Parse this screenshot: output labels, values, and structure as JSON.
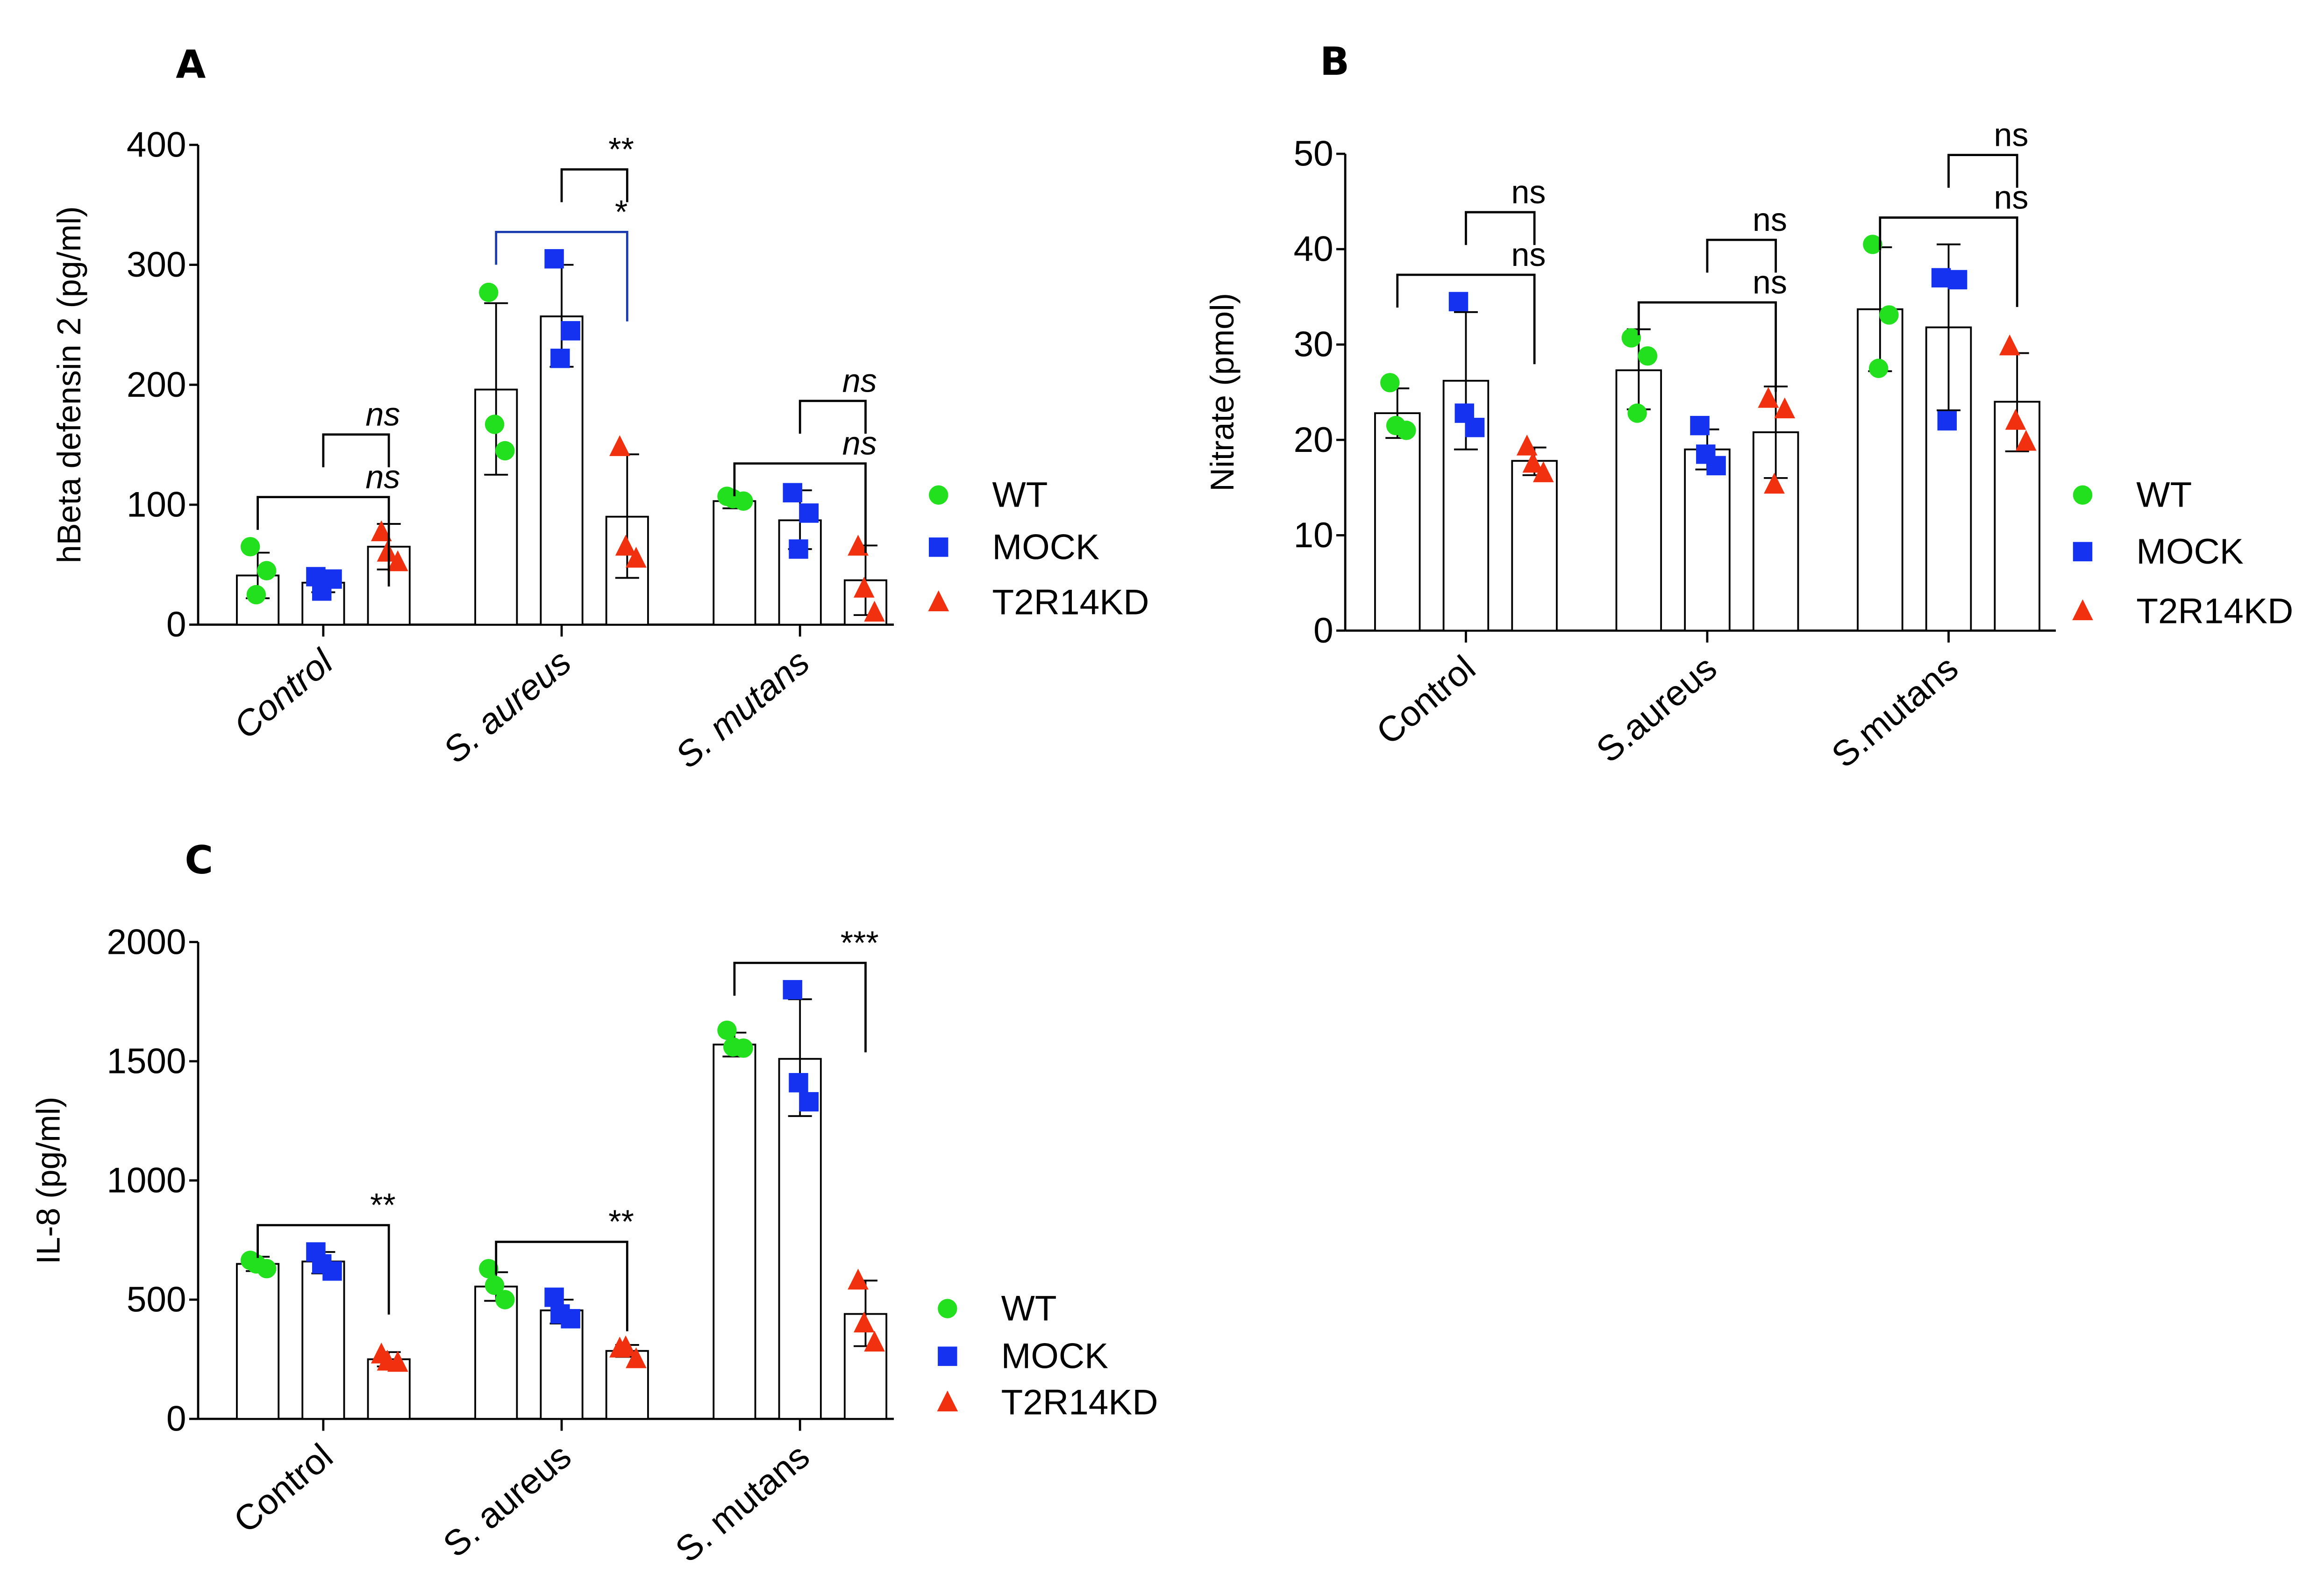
{
  "chart_data": [
    {
      "panel": "A",
      "type": "bar",
      "title": "",
      "ylabel": "hBeta defensin 2 (pg/ml)",
      "xlabel": "",
      "ylim": [
        0,
        400
      ],
      "yticks": [
        "0",
        "100",
        "200",
        "300",
        "400"
      ],
      "categories": [
        "Control",
        "S. aureus",
        "S. mutans"
      ],
      "legend": [
        "WT",
        "MOCK",
        "T2R14KD"
      ],
      "legend_position": "right",
      "series": [
        {
          "name": "WT",
          "color": "#22e01e",
          "marker": "circle",
          "values": [
            41,
            196,
            103
          ],
          "err_low": [
            22,
            125,
            97
          ],
          "err_high": [
            60,
            268,
            109
          ],
          "points": [
            [
              65,
              45,
              25
            ],
            [
              277,
              145,
              167
            ],
            [
              107,
              103,
              105
            ]
          ]
        },
        {
          "name": "MOCK",
          "color": "#1432f0",
          "marker": "square",
          "values": [
            35,
            257,
            87
          ],
          "err_low": [
            27,
            215,
            63
          ],
          "err_high": [
            43,
            300,
            112
          ],
          "points": [
            [
              40,
              38,
              28
            ],
            [
              305,
              245,
              222
            ],
            [
              110,
              93,
              63
            ]
          ]
        },
        {
          "name": "T2R14KD",
          "color": "#f0300e",
          "marker": "triangle",
          "values": [
            65,
            90,
            37
          ],
          "err_low": [
            46,
            39,
            8
          ],
          "err_high": [
            84,
            142,
            66
          ],
          "points": [
            [
              77,
              52,
              60
            ],
            [
              148,
              55,
              65
            ],
            [
              65,
              10,
              30
            ]
          ]
        }
      ],
      "significance": [
        {
          "category": "Control",
          "pair": [
            "WT",
            "T2R14KD"
          ],
          "label": "ns",
          "color": "#000000"
        },
        {
          "category": "Control",
          "pair": [
            "MOCK",
            "T2R14KD"
          ],
          "label": "ns",
          "color": "#000000"
        },
        {
          "category": "S. aureus",
          "pair": [
            "WT",
            "T2R14KD"
          ],
          "label": "*",
          "color": "#1a3ab0"
        },
        {
          "category": "S. aureus",
          "pair": [
            "MOCK",
            "T2R14KD"
          ],
          "label": "**",
          "color": "#000000"
        },
        {
          "category": "S. mutans",
          "pair": [
            "WT",
            "T2R14KD"
          ],
          "label": "ns",
          "color": "#000000"
        },
        {
          "category": "S. mutans",
          "pair": [
            "MOCK",
            "T2R14KD"
          ],
          "label": "ns",
          "color": "#000000"
        }
      ]
    },
    {
      "panel": "B",
      "type": "bar",
      "title": "",
      "ylabel": "Nitrate (pmol)",
      "xlabel": "",
      "ylim": [
        0,
        50
      ],
      "yticks": [
        "0",
        "10",
        "20",
        "30",
        "40",
        "50"
      ],
      "categories": [
        "Control",
        "S.aureus",
        "S.mutans"
      ],
      "legend": [
        "WT",
        "MOCK",
        "T2R14KD"
      ],
      "legend_position": "right",
      "series": [
        {
          "name": "WT",
          "color": "#22e01e",
          "marker": "circle",
          "values": [
            22.8,
            27.3,
            33.7
          ],
          "err_low": [
            20.2,
            23.2,
            27.2
          ],
          "err_high": [
            25.4,
            31.6,
            40.2
          ],
          "points": [
            [
              26,
              21,
              21.5
            ],
            [
              30.7,
              28.8,
              22.8
            ],
            [
              40.5,
              33.1,
              27.5
            ]
          ]
        },
        {
          "name": "MOCK",
          "color": "#1432f0",
          "marker": "square",
          "values": [
            26.2,
            19,
            31.8
          ],
          "err_low": [
            19,
            16.9,
            23.1
          ],
          "err_high": [
            33.4,
            21.1,
            40.5
          ],
          "points": [
            [
              34.5,
              21.3,
              22.8
            ],
            [
              21.5,
              17.3,
              18.5
            ],
            [
              37,
              36.8,
              22
            ]
          ]
        },
        {
          "name": "T2R14KD",
          "color": "#f0300e",
          "marker": "triangle",
          "values": [
            17.8,
            20.8,
            24
          ],
          "err_low": [
            16.3,
            16,
            18.8
          ],
          "err_high": [
            19.2,
            25.6,
            29.1
          ],
          "points": [
            [
              19.3,
              16.5,
              17.5
            ],
            [
              24.3,
              23.2,
              15.3
            ],
            [
              29.8,
              19.8,
              22
            ]
          ]
        }
      ],
      "significance": [
        {
          "category": "Control",
          "pair": [
            "WT",
            "T2R14KD"
          ],
          "label": "ns",
          "color": "#000000"
        },
        {
          "category": "Control",
          "pair": [
            "MOCK",
            "T2R14KD"
          ],
          "label": "ns",
          "color": "#000000"
        },
        {
          "category": "S.aureus",
          "pair": [
            "WT",
            "T2R14KD"
          ],
          "label": "ns",
          "color": "#000000"
        },
        {
          "category": "S.aureus",
          "pair": [
            "MOCK",
            "T2R14KD"
          ],
          "label": "ns",
          "color": "#000000"
        },
        {
          "category": "S.mutans",
          "pair": [
            "WT",
            "T2R14KD"
          ],
          "label": "ns",
          "color": "#000000"
        },
        {
          "category": "S.mutans",
          "pair": [
            "MOCK",
            "T2R14KD"
          ],
          "label": "ns",
          "color": "#000000"
        }
      ]
    },
    {
      "panel": "C",
      "type": "bar",
      "title": "",
      "ylabel": "IL-8 (pg/ml)",
      "xlabel": "",
      "ylim": [
        0,
        2000
      ],
      "yticks": [
        "0",
        "500",
        "1000",
        "1500",
        "2000"
      ],
      "categories": [
        "Control",
        "S. aureus",
        "S. mutans"
      ],
      "legend": [
        "WT",
        "MOCK",
        "T2R14KD"
      ],
      "legend_position": "right",
      "series": [
        {
          "name": "WT",
          "color": "#22e01e",
          "marker": "circle",
          "values": [
            650,
            555,
            1570
          ],
          "err_low": [
            620,
            495,
            1520
          ],
          "err_high": [
            680,
            615,
            1620
          ],
          "points": [
            [
              665,
              630,
              650
            ],
            [
              630,
              500,
              560
            ],
            [
              1630,
              1555,
              1560
            ]
          ]
        },
        {
          "name": "MOCK",
          "color": "#1432f0",
          "marker": "square",
          "values": [
            660,
            455,
            1510
          ],
          "err_low": [
            610,
            400,
            1270
          ],
          "err_high": [
            700,
            500,
            1760
          ],
          "points": [
            [
              700,
              620,
              650
            ],
            [
              510,
              420,
              440
            ],
            [
              1800,
              1330,
              1410
            ]
          ]
        },
        {
          "name": "T2R14KD",
          "color": "#f0300e",
          "marker": "triangle",
          "values": [
            250,
            285,
            440
          ],
          "err_low": [
            220,
            260,
            305
          ],
          "err_high": [
            280,
            310,
            580
          ],
          "points": [
            [
              270,
              235,
              240
            ],
            [
              295,
              250,
              300
            ],
            [
              580,
              320,
              400
            ]
          ]
        }
      ],
      "significance": [
        {
          "category": "Control",
          "pair": [
            "WT",
            "T2R14KD"
          ],
          "label": "**",
          "color": "#000000"
        },
        {
          "category": "S. aureus",
          "pair": [
            "WT",
            "T2R14KD"
          ],
          "label": "**",
          "color": "#000000"
        },
        {
          "category": "S. mutans",
          "pair": [
            "WT",
            "T2R14KD"
          ],
          "label": "***",
          "color": "#000000"
        }
      ]
    }
  ]
}
